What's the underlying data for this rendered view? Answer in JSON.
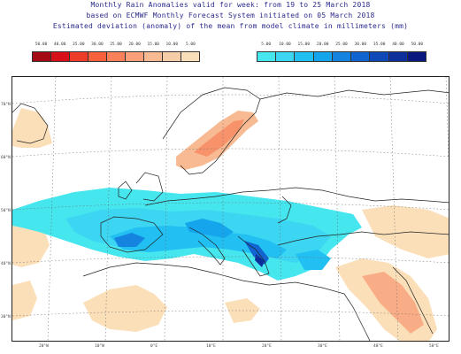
{
  "title": {
    "line1": "Monthly Rain Anomalies valid for week: from 19 to 25 March 2018",
    "line2": "based on ECMWF Monthly Forecast System initiated on 05 March 2018",
    "line3": "Estimated deviation (anomaly) of the mean from model climate in millimeters (mm)"
  },
  "legend_dry": {
    "labels": [
      "50.00",
      "40.00",
      "35.00",
      "30.00",
      "25.00",
      "20.00",
      "15.00",
      "10.00",
      "5.00"
    ],
    "colors": [
      "#a30b14",
      "#d8101a",
      "#ee3c2b",
      "#f5613a",
      "#f8815b",
      "#f9a07a",
      "#f7ba92",
      "#f6cda6",
      "#fbdfb9"
    ]
  },
  "legend_wet": {
    "labels": [
      "5.00",
      "10.00",
      "15.00",
      "20.00",
      "25.00",
      "30.00",
      "35.00",
      "40.00",
      "50.00"
    ],
    "colors": [
      "#46e6ef",
      "#3dd6f2",
      "#22bff2",
      "#15a5ec",
      "#1484e0",
      "#1264d0",
      "#1148b8",
      "#0d2f9c",
      "#081a80"
    ]
  },
  "lon_labels": [
    "20°W",
    "10°W",
    "0°E",
    "10°E",
    "20°E",
    "30°E",
    "40°E",
    "50°E"
  ],
  "lat_labels": [
    "70°N",
    "60°N",
    "50°N",
    "40°N",
    "30°N"
  ]
}
